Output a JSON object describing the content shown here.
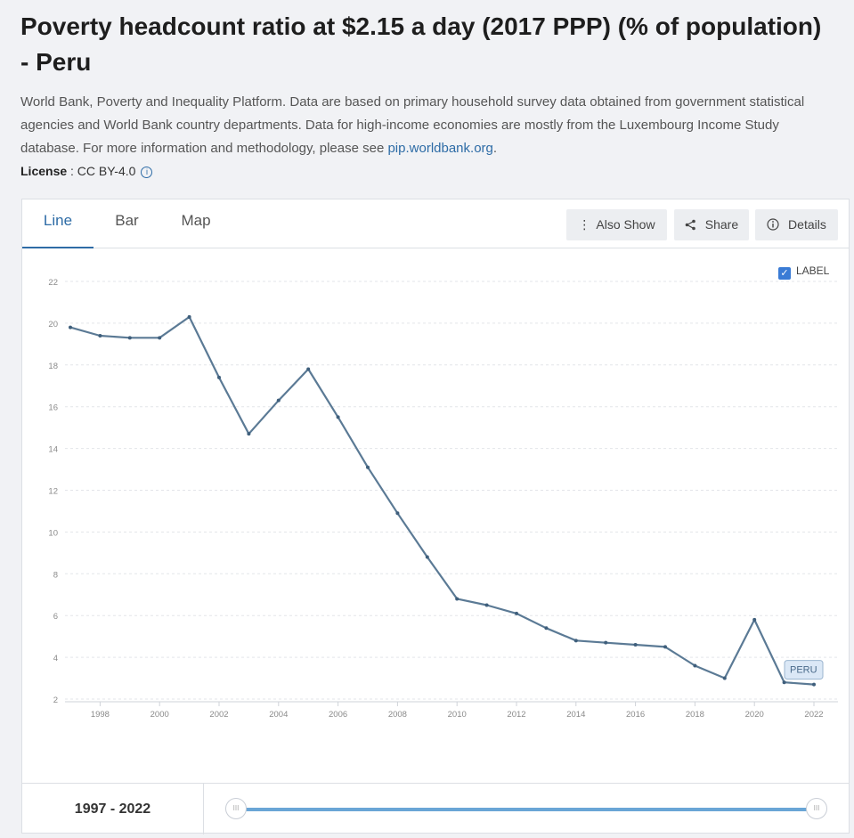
{
  "page": {
    "title": "Poverty headcount ratio at $2.15 a day (2017 PPP) (% of population) - Peru",
    "description": "World Bank, Poverty and Inequality Platform. Data are based on primary household survey data obtained from government statistical agencies and World Bank country departments. Data for high-income economies are mostly from the Luxembourg Income Study database. For more information and methodology, please see",
    "description_link": "pip.worldbank.org",
    "description_end": ".",
    "license_label": "License",
    "license_value": " : CC BY-4.0"
  },
  "tabs": [
    "Line",
    "Bar",
    "Map"
  ],
  "toolbar": {
    "also_show": "Also Show",
    "share": "Share",
    "details": "Details"
  },
  "label_toggle": "LABEL",
  "range": {
    "label": "1997 - 2022"
  },
  "colors": {
    "accent": "#2e6ca6",
    "line": "#5b7a95",
    "slider": "#6aa6d6"
  },
  "chart_data": {
    "type": "line",
    "title": "Poverty headcount ratio at $2.15 a day (2017 PPP) (% of population) - Peru",
    "xlabel": "",
    "ylabel": "",
    "xlim": [
      1997,
      2022
    ],
    "ylim": [
      2,
      22
    ],
    "yticks": [
      2,
      4,
      6,
      8,
      10,
      12,
      14,
      16,
      18,
      20,
      22
    ],
    "xticks": [
      1998,
      2000,
      2002,
      2004,
      2006,
      2008,
      2010,
      2012,
      2014,
      2016,
      2018,
      2020,
      2022
    ],
    "grid": true,
    "series": [
      {
        "name": "Peru",
        "label": "PERU",
        "x": [
          1997,
          1998,
          1999,
          2000,
          2001,
          2002,
          2003,
          2004,
          2005,
          2006,
          2007,
          2008,
          2009,
          2010,
          2011,
          2012,
          2013,
          2014,
          2015,
          2016,
          2017,
          2018,
          2019,
          2020,
          2021,
          2022
        ],
        "values": [
          19.8,
          19.4,
          19.3,
          19.3,
          20.3,
          17.4,
          14.7,
          16.3,
          17.8,
          15.5,
          13.1,
          10.9,
          8.8,
          6.8,
          6.5,
          6.1,
          5.4,
          4.8,
          4.7,
          4.6,
          4.5,
          3.6,
          3.0,
          5.8,
          2.8,
          2.7
        ]
      }
    ]
  }
}
